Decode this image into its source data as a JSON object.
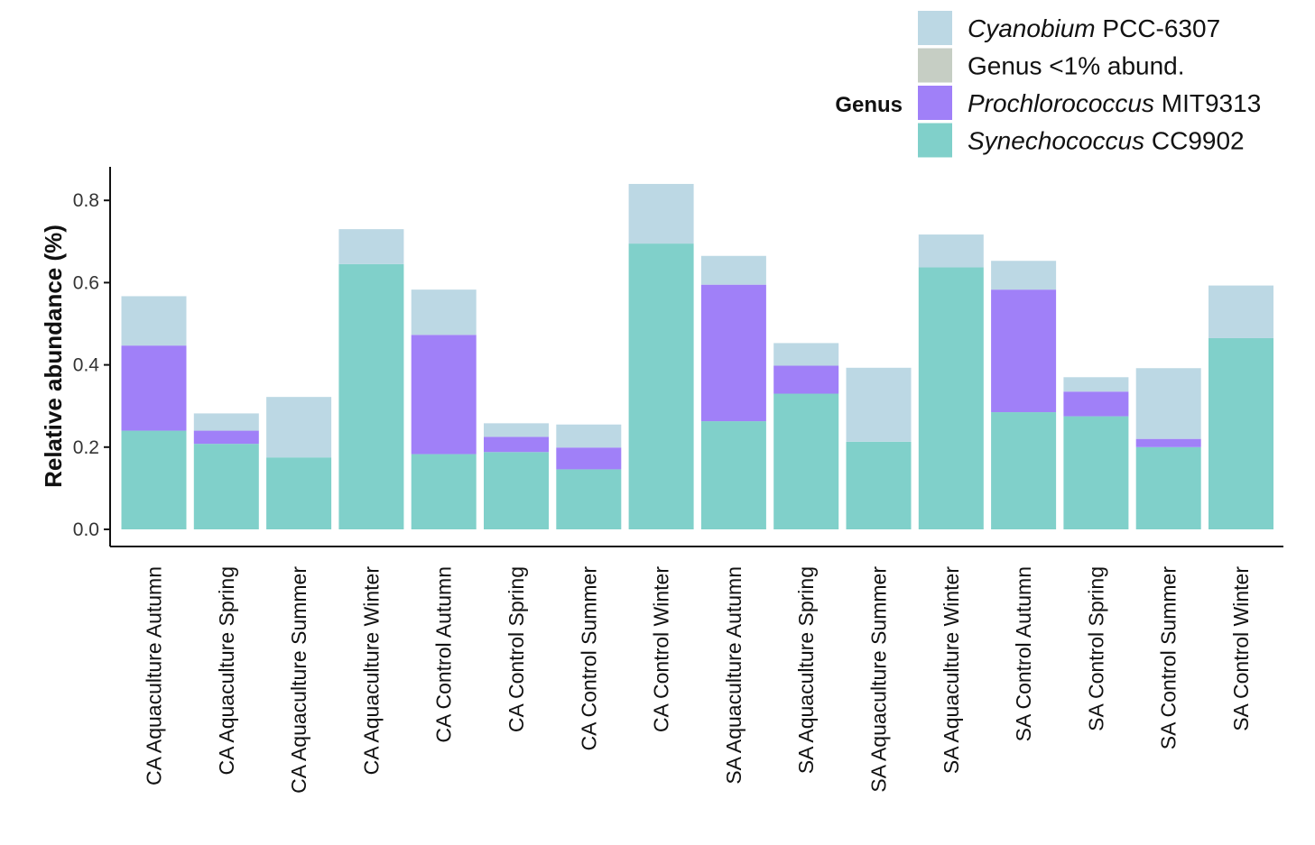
{
  "chart_data": {
    "type": "bar",
    "stacked": true,
    "ylabel": "Relative abundance (%)",
    "ylim": [
      0,
      0.88
    ],
    "yticks": [
      0.0,
      0.2,
      0.4,
      0.6,
      0.8
    ],
    "ytick_labels": [
      "0.0",
      "0.2",
      "0.4",
      "0.6",
      "0.8"
    ],
    "grid": false,
    "legend": {
      "title": "Genus",
      "position": "top-right",
      "entries": [
        {
          "italic": "Cyanobium",
          "rest": " PCC-6307",
          "color": "#bcd8e4"
        },
        {
          "italic": "",
          "rest": "Genus <1% abund.",
          "color": "#c6cec4"
        },
        {
          "italic": "Prochlorococcus",
          "rest": " MIT9313",
          "color": "#a080f8"
        },
        {
          "italic": "Synechococcus",
          "rest": " CC9902",
          "color": "#80d0ca"
        }
      ]
    },
    "categories": [
      "CA Aquaculture Autumn",
      "CA Aquaculture Spring",
      "CA Aquaculture Summer",
      "CA Aquaculture Winter",
      "CA Control Autumn",
      "CA Control Spring",
      "CA Control Summer",
      "CA Control Winter",
      "SA Aquaculture Autumn",
      "SA Aquaculture Spring",
      "SA Aquaculture Summer",
      "SA Aquaculture Winter",
      "SA Control Autumn",
      "SA Control Spring",
      "SA Control Summer",
      "SA Control Winter"
    ],
    "series": [
      {
        "name": "Synechococcus CC9902",
        "color": "#80d0ca",
        "values": [
          0.24,
          0.208,
          0.175,
          0.645,
          0.183,
          0.188,
          0.146,
          0.695,
          0.263,
          0.33,
          0.213,
          0.637,
          0.285,
          0.275,
          0.2,
          0.465
        ]
      },
      {
        "name": "Prochlorococcus MIT9313",
        "color": "#a080f8",
        "values": [
          0.207,
          0.032,
          0.0,
          0.0,
          0.29,
          0.037,
          0.053,
          0.0,
          0.332,
          0.068,
          0.0,
          0.0,
          0.298,
          0.06,
          0.02,
          0.0
        ]
      },
      {
        "name": "Genus <1% abund.",
        "color": "#c6cec4",
        "values": [
          0,
          0,
          0,
          0,
          0,
          0,
          0,
          0,
          0,
          0,
          0,
          0,
          0,
          0,
          0,
          0
        ]
      },
      {
        "name": "Cyanobium PCC-6307",
        "color": "#bcd8e4",
        "values": [
          0.12,
          0.042,
          0.147,
          0.085,
          0.11,
          0.033,
          0.056,
          0.145,
          0.07,
          0.055,
          0.18,
          0.08,
          0.07,
          0.035,
          0.172,
          0.128
        ]
      }
    ]
  }
}
